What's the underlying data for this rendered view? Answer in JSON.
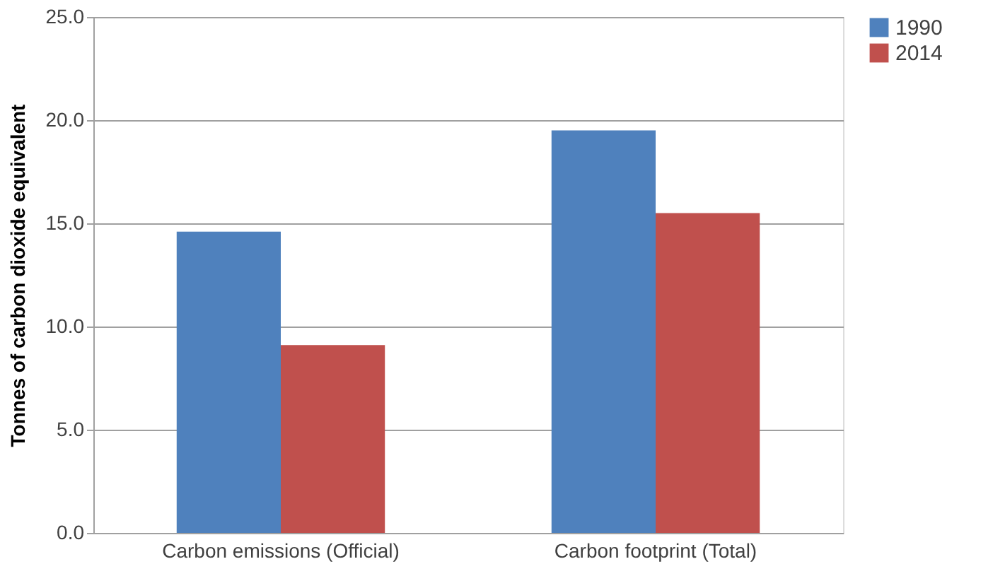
{
  "chart_data": {
    "type": "bar",
    "ylabel": "Tonnes of carbon dioxide equivalent",
    "categories": [
      "Carbon emissions (Official)",
      "Carbon footprint (Total)"
    ],
    "series": [
      {
        "name": "1990",
        "color": "#4f81bd",
        "values": [
          14.6,
          19.5
        ]
      },
      {
        "name": "2014",
        "color": "#c0504d",
        "values": [
          9.1,
          15.5
        ]
      }
    ],
    "ylim": [
      0,
      25
    ],
    "yticks": [
      {
        "value": 0,
        "label": "0.0"
      },
      {
        "value": 5,
        "label": "5.0"
      },
      {
        "value": 10,
        "label": "10.0"
      },
      {
        "value": 15,
        "label": "15.0"
      },
      {
        "value": 20,
        "label": "20.0"
      },
      {
        "value": 25,
        "label": "25.0"
      }
    ],
    "grid": "y",
    "legend": "right"
  }
}
